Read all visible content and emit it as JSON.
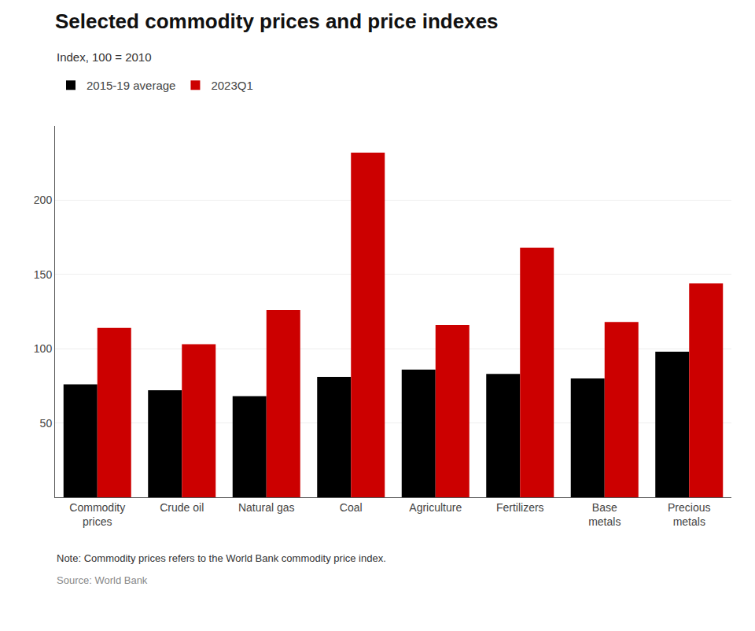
{
  "chart_data": {
    "type": "bar",
    "title": "Selected commodity prices and price indexes",
    "subtitle": "Index, 100 = 2010",
    "annotations": [
      "Note: Commodity prices refers to the World Bank commodity price index.",
      "Source: World Bank"
    ],
    "categories": [
      "Commodity\nprices",
      "Crude oil",
      "Natural gas",
      "Coal",
      "Agriculture",
      "Fertilizers",
      "Base\nmetals",
      "Precious\nmetals"
    ],
    "series": [
      {
        "name": "2015-19 average",
        "color": "#000000",
        "values": [
          76,
          72,
          68,
          81,
          86,
          83,
          80,
          98
        ]
      },
      {
        "name": "2023Q1",
        "color": "#cc0000",
        "values": [
          114,
          103,
          126,
          232,
          116,
          168,
          118,
          144
        ]
      }
    ],
    "ylim": [
      0,
      250
    ],
    "yticks": [
      50,
      100,
      150,
      200
    ],
    "grid": true,
    "legend": "top-left"
  }
}
